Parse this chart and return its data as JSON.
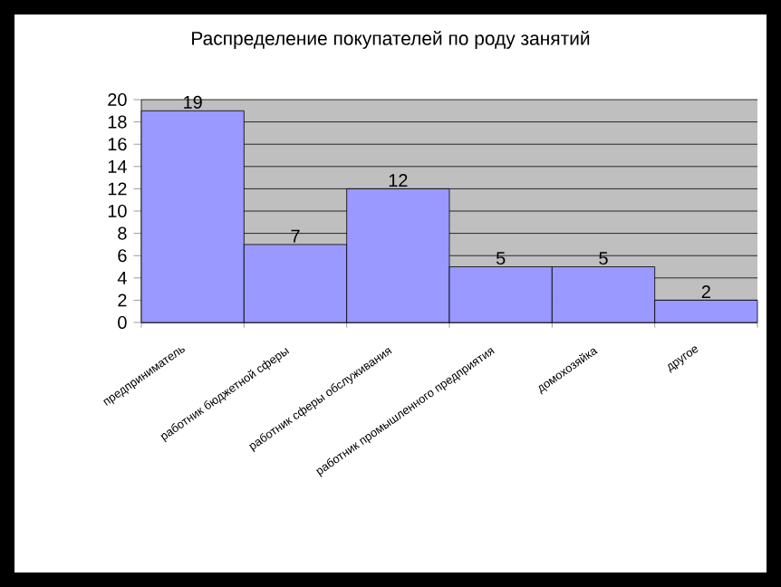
{
  "chart_data": {
    "type": "bar",
    "title": "Распределение покупателей по роду занятий",
    "categories": [
      "предприниматель",
      "работник бюджетной сферы",
      "работник сферы обслуживания",
      "работник промышленного предприятия",
      "домохозяйка",
      "другое"
    ],
    "values": [
      19,
      7,
      12,
      5,
      5,
      2
    ],
    "color": "#9999ff",
    "ylim": [
      0,
      20
    ],
    "yticks": [
      0,
      2,
      4,
      6,
      8,
      10,
      12,
      14,
      16,
      18,
      20
    ],
    "grid": "y",
    "data_labels": true
  }
}
